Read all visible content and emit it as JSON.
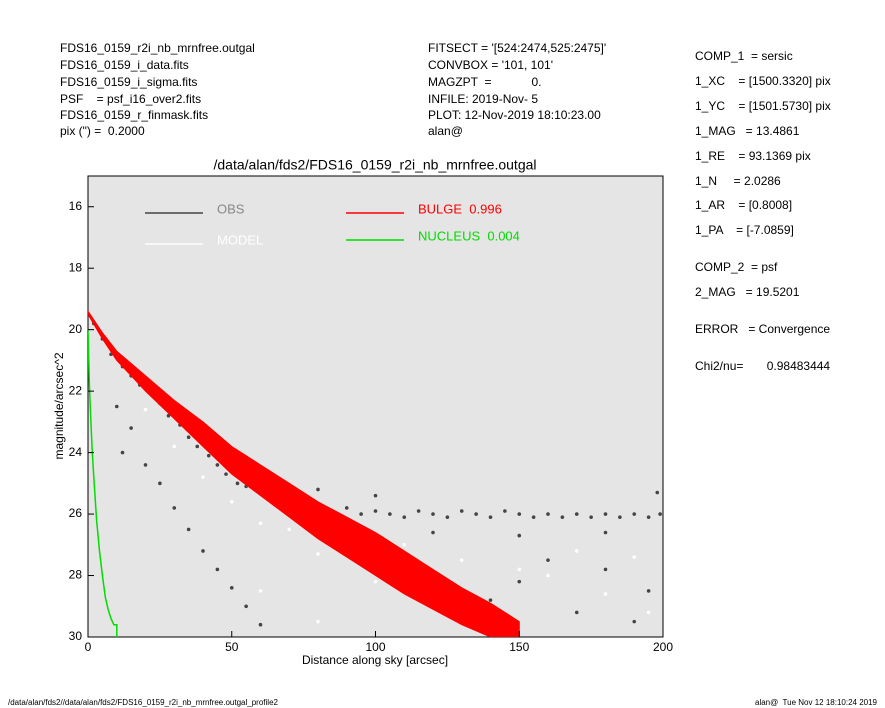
{
  "header": {
    "left": [
      "FDS16_0159_r2i_nb_mrnfree.outgal",
      "FDS16_0159_i_data.fits",
      "FDS16_0159_i_sigma.fits",
      "PSF    = psf_i16_over2.fits",
      "FDS16_0159_r_finmask.fits",
      "pix (\") =  0.2000"
    ],
    "middle": [
      "FITSECT = '[524:2474,525:2475]'",
      "CONVBOX = '101, 101'",
      "MAGZPT  =            0.",
      "INFILE: 2019-Nov- 5",
      "PLOT: 12-Nov-2019 18:10:23.00",
      "alan@"
    ],
    "right": [
      "COMP_1  = sersic",
      "1_XC    = [1500.3320] pix",
      "1_YC    = [1501.5730] pix",
      "1_MAG   = 13.4861",
      "1_RE    = 93.1369 pix",
      "1_N     = 2.0286",
      "1_AR    = [0.8008]",
      "1_PA    = [-7.0859]",
      "COMP_2  = psf",
      "2_MAG   = 19.5201",
      "ERROR   = Convergence",
      "Chi2/nu=       0.98483444"
    ]
  },
  "chart_data": {
    "type": "profile",
    "title": "/data/alan/fds2/FDS16_0159_r2i_nb_mrnfree.outgal",
    "x_label": "Distance along sky [arcsec]",
    "y_label": "magnitude/arcsec^2",
    "xlim": [
      0,
      200
    ],
    "xticks": [
      0,
      50,
      100,
      150,
      200
    ],
    "ylim": [
      30,
      15
    ],
    "yticks": [
      16,
      18,
      20,
      22,
      24,
      26,
      28,
      30
    ],
    "series": [
      {
        "name": "OBS",
        "color": "#444444",
        "kind": "scatter",
        "x": [
          2,
          5,
          8,
          12,
          15,
          18,
          22,
          25,
          28,
          32,
          35,
          38,
          42,
          45,
          48,
          52,
          55,
          58,
          62,
          65,
          70,
          75,
          80,
          85,
          90,
          95,
          100,
          105,
          110,
          115,
          120,
          125,
          130,
          135,
          140,
          145,
          150,
          155,
          160,
          165,
          170,
          175,
          180,
          185,
          190,
          195,
          199,
          10,
          12,
          15,
          20,
          25,
          30,
          35,
          40,
          45,
          50,
          55,
          60,
          160,
          180,
          195,
          170,
          190,
          140,
          150,
          80,
          100,
          120,
          150,
          180,
          198
        ],
        "values": [
          19.8,
          20.3,
          20.8,
          21.2,
          21.5,
          21.8,
          22.1,
          22.4,
          22.8,
          23.1,
          23.5,
          23.8,
          24.1,
          24.4,
          24.7,
          25.0,
          25.1,
          25.2,
          25.3,
          25.5,
          25.6,
          25.7,
          25.8,
          25.9,
          25.8,
          26.0,
          25.9,
          26.0,
          26.1,
          25.9,
          26.0,
          26.1,
          25.9,
          26.0,
          26.1,
          25.9,
          26.0,
          26.1,
          26.0,
          26.1,
          26.0,
          26.1,
          26.0,
          26.1,
          26.0,
          26.1,
          26.0,
          22.5,
          24.0,
          23.2,
          24.4,
          25.0,
          25.8,
          26.5,
          27.2,
          27.8,
          28.4,
          29.0,
          29.6,
          27.5,
          27.8,
          28.5,
          29.2,
          29.5,
          28.8,
          28.2,
          25.2,
          25.4,
          26.6,
          26.7,
          26.6,
          25.3
        ]
      },
      {
        "name": "MODEL",
        "color": "#ffffff",
        "kind": "scatter",
        "x": [
          20,
          40,
          60,
          80,
          100,
          120,
          140,
          160,
          180,
          195,
          110,
          130,
          150,
          170,
          190,
          90,
          70,
          50,
          30,
          60,
          80
        ],
        "values": [
          22.6,
          24.8,
          26.3,
          27.3,
          28.2,
          28.9,
          29.6,
          28.0,
          28.6,
          29.2,
          27.0,
          27.5,
          27.8,
          27.2,
          27.4,
          26.8,
          26.5,
          25.6,
          23.8,
          28.5,
          29.5
        ]
      },
      {
        "name": "BULGE  0.996",
        "color": "#ff0000",
        "kind": "band",
        "x": [
          0,
          5,
          10,
          20,
          30,
          40,
          50,
          60,
          70,
          80,
          90,
          100,
          110,
          120,
          130,
          140,
          150
        ],
        "values": [
          19.4,
          20.1,
          20.7,
          21.5,
          22.3,
          23.0,
          23.8,
          24.4,
          25.0,
          25.6,
          26.1,
          26.6,
          27.2,
          27.8,
          28.4,
          28.9,
          29.5
        ],
        "values_low": [
          19.5,
          20.3,
          21.0,
          22.0,
          22.9,
          23.8,
          24.7,
          25.4,
          26.1,
          26.8,
          27.4,
          28.0,
          28.6,
          29.1,
          29.6,
          30.0,
          30.0
        ]
      },
      {
        "name": "NUCLEUS  0.004",
        "color": "#00dd00",
        "kind": "line",
        "x": [
          0,
          0.5,
          1,
          1.5,
          2,
          3,
          4,
          5,
          6,
          7,
          8,
          9,
          10,
          10
        ],
        "values": [
          20.0,
          21.8,
          23.0,
          24.0,
          24.8,
          26.2,
          27.2,
          28.0,
          28.7,
          29.1,
          29.4,
          29.6,
          29.6,
          30.0
        ]
      }
    ]
  },
  "footer": {
    "left": "/data/alan/fds2//data/alan/fds2/FDS16_0159_r2i_nb_mrnfree.outgal_profile2",
    "right": "alan@  Tue Nov 12 18:10:24 2019"
  }
}
